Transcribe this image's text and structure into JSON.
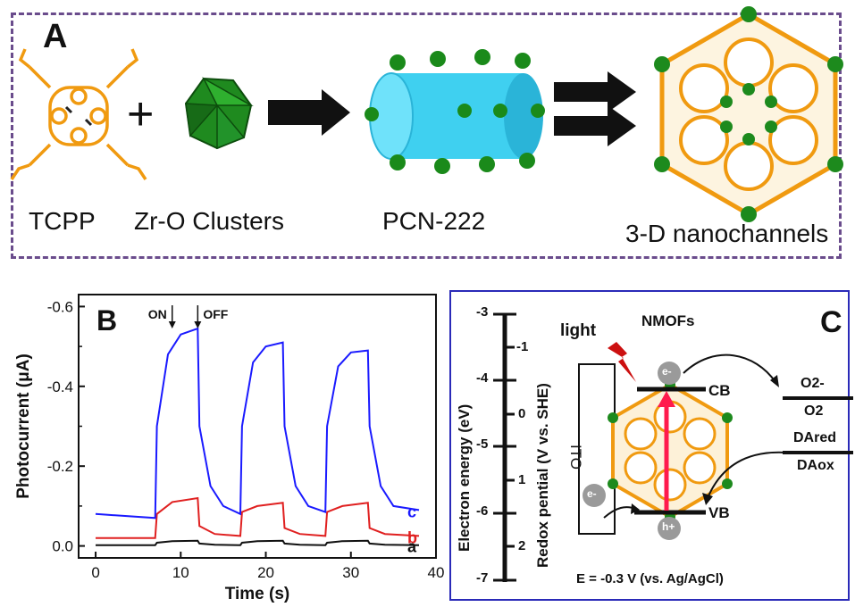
{
  "panel_a": {
    "letter": "A",
    "labels": [
      "TCPP",
      "Zr-O Clusters",
      "PCN-222",
      "3-D nanochannels"
    ],
    "plus": "+"
  },
  "panel_b": {
    "letter": "B",
    "on_label": "ON",
    "off_label": "OFF",
    "colors": {
      "a": "#111111",
      "b": "#e02020",
      "c": "#1a1aff"
    }
  },
  "panel_c": {
    "letter": "C",
    "title": "NMOFs",
    "light": "light",
    "ito": "ITO",
    "left_axis_label": "Electron energy (eV)",
    "right_axis_label": "Redox pential (V vs. SHE)",
    "left_ticks": [
      "-3",
      "-4",
      "-5",
      "-6",
      "-7"
    ],
    "right_ticks": [
      "-1",
      "0",
      "1",
      "2"
    ],
    "cb": "CB",
    "vb": "VB",
    "electron": "e-",
    "hole": "h+",
    "o2_minus": "O2-",
    "o2": "O2",
    "da_red": "DAred",
    "da_ox": "DAox",
    "potential": "E = -0.3 V (vs. Ag/AgCl)"
  },
  "chart_data": {
    "type": "line",
    "xlabel": "Time (s)",
    "ylabel": "Photocurrent (μA)",
    "xlim": [
      -2,
      40
    ],
    "ylim": [
      0.03,
      -0.63
    ],
    "x_ticks": [
      "0",
      "10",
      "20",
      "30",
      "40"
    ],
    "y_ticks": [
      "0.0",
      "-0.2",
      "-0.4",
      "-0.6"
    ],
    "series": [
      {
        "name": "a",
        "x": [
          0,
          7,
          7.2,
          9,
          12,
          12.2,
          14,
          17,
          17.2,
          19,
          22,
          22.2,
          24,
          27,
          27.2,
          29,
          32,
          32.2,
          34,
          38
        ],
        "y": [
          -0.002,
          -0.002,
          -0.008,
          -0.012,
          -0.013,
          -0.006,
          -0.003,
          -0.002,
          -0.008,
          -0.012,
          -0.013,
          -0.006,
          -0.003,
          -0.002,
          -0.008,
          -0.012,
          -0.013,
          -0.006,
          -0.003,
          -0.002
        ]
      },
      {
        "name": "b",
        "x": [
          0,
          7,
          7.2,
          9,
          12,
          12.2,
          14,
          17,
          17.2,
          19,
          22,
          22.2,
          24,
          27,
          27.2,
          29,
          32,
          32.2,
          34,
          38
        ],
        "y": [
          -0.02,
          -0.02,
          -0.08,
          -0.11,
          -0.12,
          -0.05,
          -0.03,
          -0.025,
          -0.085,
          -0.1,
          -0.108,
          -0.045,
          -0.03,
          -0.025,
          -0.085,
          -0.1,
          -0.108,
          -0.045,
          -0.03,
          -0.025
        ]
      },
      {
        "name": "c",
        "x": [
          0,
          7,
          7.2,
          8.5,
          10,
          12,
          12.2,
          13.5,
          15,
          17,
          17.2,
          18.5,
          20,
          22,
          22.2,
          23.5,
          25,
          27,
          27.2,
          28.5,
          30,
          32,
          32.2,
          33.5,
          35,
          38
        ],
        "y": [
          -0.08,
          -0.07,
          -0.3,
          -0.48,
          -0.53,
          -0.545,
          -0.3,
          -0.15,
          -0.1,
          -0.08,
          -0.3,
          -0.46,
          -0.5,
          -0.51,
          -0.3,
          -0.15,
          -0.1,
          -0.085,
          -0.3,
          -0.45,
          -0.485,
          -0.49,
          -0.3,
          -0.15,
          -0.1,
          -0.09
        ]
      }
    ],
    "ons": [
      9,
      12
    ]
  }
}
